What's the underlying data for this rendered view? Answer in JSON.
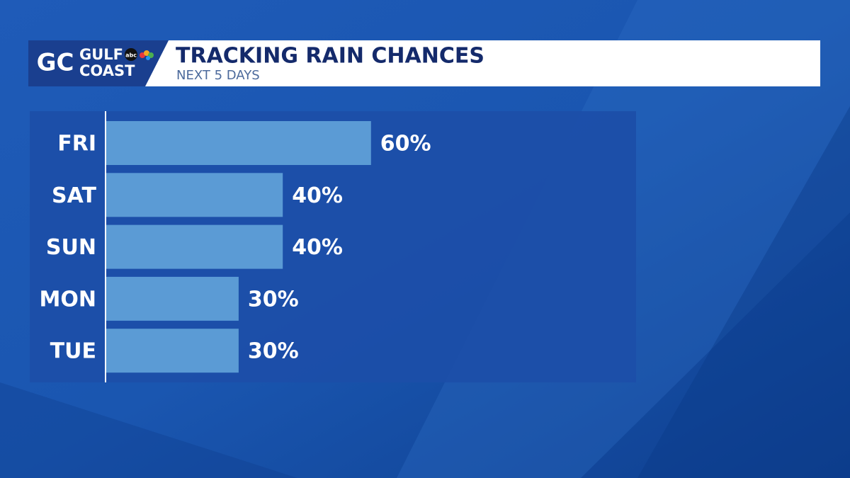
{
  "logo": {
    "mark": "GC",
    "line1": "GULF",
    "line2": "COAST",
    "network": "abc"
  },
  "chart_data": {
    "type": "bar",
    "orientation": "horizontal",
    "title": "TRACKING RAIN CHANCES",
    "subtitle": "NEXT 5 DAYS",
    "categories": [
      "FRI",
      "SAT",
      "SUN",
      "MON",
      "TUE"
    ],
    "values": [
      60,
      40,
      40,
      30,
      30
    ],
    "value_labels": [
      "60%",
      "40%",
      "40%",
      "30%",
      "30%"
    ],
    "color": "#5b9bd5"
  }
}
